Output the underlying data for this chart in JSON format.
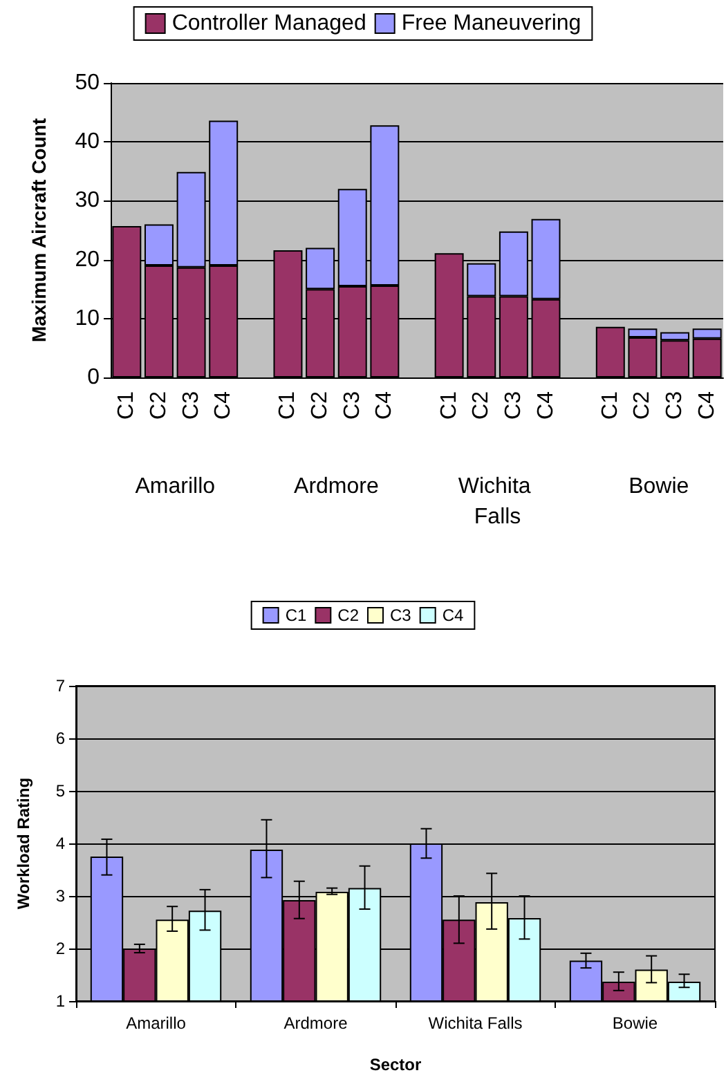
{
  "chart_data": [
    {
      "type": "bar",
      "stacked": true,
      "ylabel": "Maximum Aircraft Count",
      "categories": [
        "C1",
        "C2",
        "C3",
        "C4",
        null,
        "C1",
        "C2",
        "C3",
        "C4",
        null,
        "C1",
        "C2",
        "C3",
        "C4",
        null,
        "C1",
        "C2",
        "C3",
        "C4"
      ],
      "series": [
        {
          "name": "Controller Managed",
          "color": "#993366",
          "values": [
            25.7,
            19.0,
            18.7,
            19.0,
            null,
            21.6,
            15.0,
            15.5,
            15.6,
            null,
            21.1,
            13.8,
            13.8,
            13.3,
            null,
            8.6,
            6.8,
            6.3,
            6.6
          ]
        },
        {
          "name": "Free Maneuvering",
          "color": "#9999ff",
          "values": [
            null,
            7.0,
            16.2,
            24.6,
            null,
            null,
            7.0,
            16.5,
            27.2,
            null,
            null,
            5.6,
            11.0,
            13.6,
            null,
            null,
            1.5,
            1.4,
            1.7
          ]
        }
      ],
      "ylim": [
        0,
        50
      ],
      "yticks": [
        0,
        10,
        20,
        30,
        40,
        50
      ],
      "grid": "y",
      "legend": "top",
      "annotations": [
        "Amarillo",
        "Ardmore",
        "Wichita Falls",
        "Bowie"
      ]
    },
    {
      "type": "bar",
      "xlabel": "Sector",
      "ylabel": "Workload Rating",
      "categories": [
        "Amarillo",
        "Ardmore",
        "Wichita Falls",
        "Bowie"
      ],
      "series": [
        {
          "name": "C1",
          "color": "#9999ff",
          "values": [
            3.75,
            3.88,
            4.0,
            1.77
          ],
          "errors": [
            [
              3.4,
              4.08
            ],
            [
              3.35,
              4.45
            ],
            [
              3.72,
              4.28
            ],
            [
              1.63,
              1.91
            ]
          ]
        },
        {
          "name": "C2",
          "color": "#993366",
          "values": [
            2.0,
            2.92,
            2.55,
            1.37
          ],
          "errors": [
            [
              1.92,
              2.08
            ],
            [
              2.57,
              3.28
            ],
            [
              2.1,
              3.0
            ],
            [
              1.2,
              1.55
            ]
          ]
        },
        {
          "name": "C3",
          "color": "#ffffcc",
          "values": [
            2.55,
            3.08,
            2.88,
            1.6
          ],
          "errors": [
            [
              2.33,
              2.8
            ],
            [
              3.03,
              3.15
            ],
            [
              2.37,
              3.43
            ],
            [
              1.35,
              1.86
            ]
          ]
        },
        {
          "name": "C4",
          "color": "#ccffff",
          "values": [
            2.72,
            3.15,
            2.58,
            1.37
          ],
          "errors": [
            [
              2.35,
              3.12
            ],
            [
              2.75,
              3.57
            ],
            [
              2.18,
              3.0
            ],
            [
              1.26,
              1.51
            ]
          ]
        }
      ],
      "ylim": [
        1,
        7
      ],
      "yticks": [
        1,
        2,
        3,
        4,
        5,
        6,
        7
      ],
      "grid": "y",
      "legend": "top"
    }
  ]
}
